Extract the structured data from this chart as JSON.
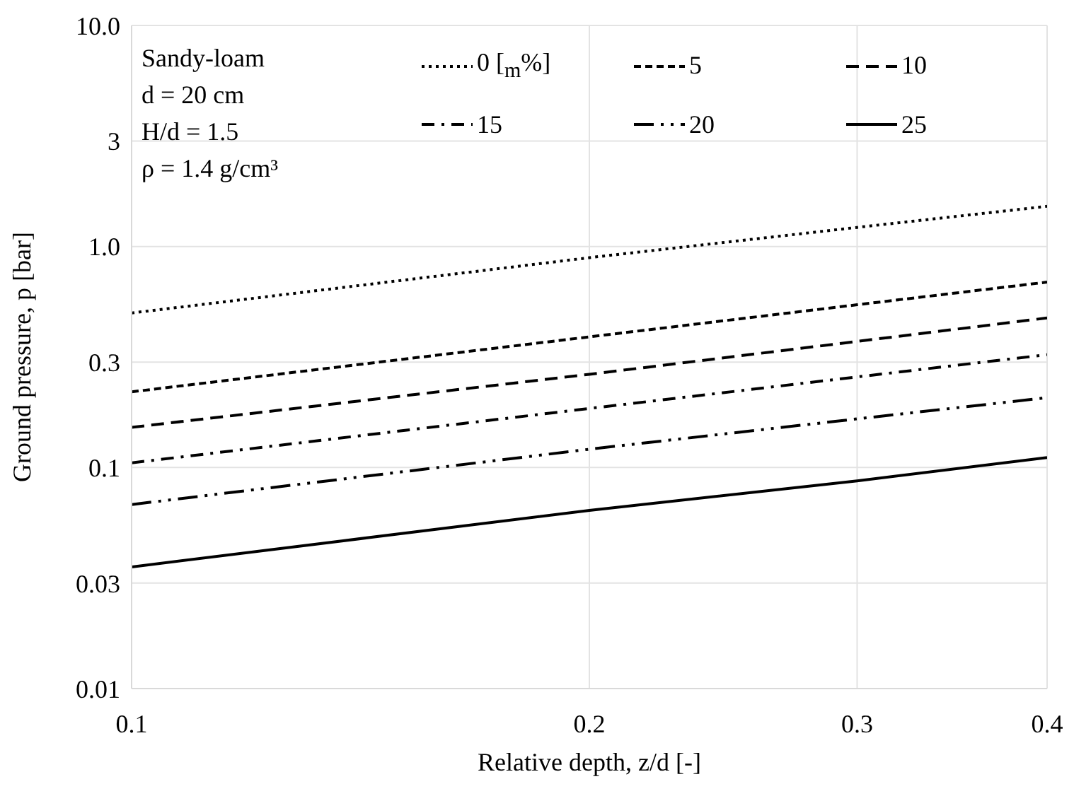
{
  "chart_data": {
    "type": "line",
    "xlabel": "Relative depth, z/d [-]",
    "ylabel": "Ground pressure, p [bar]",
    "annotations": [
      "Sandy-loam",
      "d = 20 cm",
      "H/d = 1.5",
      "ρ = 1.4 g/cm³"
    ],
    "x": [
      0.1,
      0.2,
      0.3,
      0.4
    ],
    "series": [
      {
        "name": "0 [$_{m}$%]",
        "color": "#000000",
        "line_style": "dotted",
        "values": [
          0.5,
          0.89,
          1.22,
          1.52
        ]
      },
      {
        "name": "5",
        "color": "#000000",
        "line_style": "dashed",
        "values": [
          0.22,
          0.39,
          0.545,
          0.69
        ]
      },
      {
        "name": "10",
        "color": "#000000",
        "line_style": "longdashed",
        "values": [
          0.152,
          0.264,
          0.372,
          0.475
        ]
      },
      {
        "name": "15",
        "color": "#000000",
        "line_style": "dashdot",
        "values": [
          0.105,
          0.185,
          0.257,
          0.324
        ]
      },
      {
        "name": "20",
        "color": "#000000",
        "line_style": "dashdotdot",
        "values": [
          0.068,
          0.121,
          0.166,
          0.207
        ]
      },
      {
        "name": "25",
        "color": "#000000",
        "line_style": "solid",
        "values": [
          0.0355,
          0.064,
          0.087,
          0.111
        ]
      }
    ],
    "xlim": [
      0.1,
      0.4
    ],
    "xticks": [
      0.1,
      0.2,
      0.3,
      0.4
    ],
    "ylim": [
      0.01,
      10
    ],
    "yticks": [
      0.01,
      0.03,
      0.1,
      0.3,
      {
        "value": 1,
        "label": "1.0"
      },
      3,
      {
        "value": 10,
        "label": "10.0"
      }
    ],
    "log": "xy",
    "grid": true,
    "legend": "top",
    "marker": "none"
  }
}
